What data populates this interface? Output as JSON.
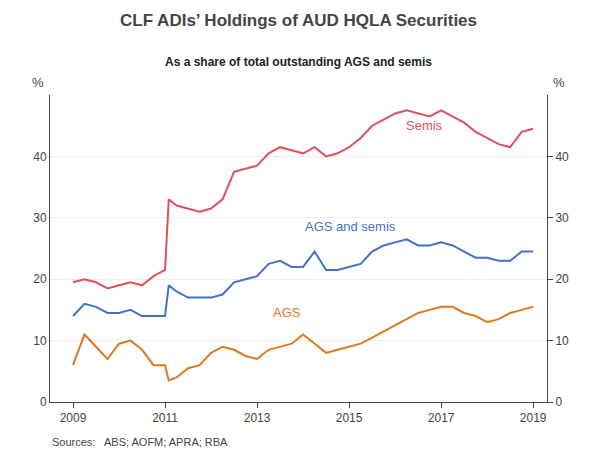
{
  "chart_data": {
    "type": "line",
    "title": "CLF ADIs’ Holdings of AUD HQLA Securities",
    "subtitle": "As a share of total outstanding AGS and semis",
    "ylabel": "%",
    "y2label": "%",
    "source": "Sources:   ABS; AOFM; APRA; RBA",
    "xlim": [
      2008.5,
      2019.3
    ],
    "xticks": [
      2009,
      2011,
      2013,
      2015,
      2017,
      2019
    ],
    "ylim": [
      0,
      50
    ],
    "yticks": [
      0,
      10,
      20,
      30,
      40
    ],
    "y2lim": [
      0,
      50
    ],
    "y2ticks": [
      0,
      10,
      20,
      30,
      40
    ],
    "grid": "y",
    "x": [
      2009.0,
      2009.25,
      2009.5,
      2009.75,
      2010.0,
      2010.25,
      2010.5,
      2010.75,
      2011.0,
      2011.08,
      2011.25,
      2011.5,
      2011.75,
      2012.0,
      2012.25,
      2012.5,
      2012.75,
      2013.0,
      2013.25,
      2013.5,
      2013.75,
      2014.0,
      2014.25,
      2014.5,
      2014.75,
      2015.0,
      2015.25,
      2015.5,
      2015.75,
      2016.0,
      2016.25,
      2016.5,
      2016.75,
      2017.0,
      2017.25,
      2017.5,
      2017.75,
      2018.0,
      2018.25,
      2018.5,
      2018.75,
      2019.0
    ],
    "series": [
      {
        "name": "Semis",
        "color": "#e05060",
        "values": [
          19.5,
          20.0,
          19.5,
          18.5,
          19.0,
          19.5,
          19.0,
          20.5,
          21.5,
          33.0,
          32.0,
          31.5,
          31.0,
          31.5,
          33.0,
          37.5,
          38.0,
          38.5,
          40.5,
          41.5,
          41.0,
          40.5,
          41.5,
          40.0,
          40.5,
          41.5,
          43.0,
          45.0,
          46.0,
          47.0,
          47.5,
          47.0,
          46.5,
          47.5,
          46.5,
          45.5,
          44.0,
          43.0,
          42.0,
          41.5,
          44.0,
          44.5
        ]
      },
      {
        "name": "AGS and semis",
        "color": "#4472c4",
        "values": [
          14.0,
          16.0,
          15.5,
          14.5,
          14.5,
          15.0,
          14.0,
          14.0,
          14.0,
          19.0,
          18.0,
          17.0,
          17.0,
          17.0,
          17.5,
          19.5,
          20.0,
          20.5,
          22.5,
          23.0,
          22.0,
          22.0,
          24.5,
          21.5,
          21.5,
          22.0,
          22.5,
          24.5,
          25.5,
          26.0,
          26.5,
          25.5,
          25.5,
          26.0,
          25.5,
          24.5,
          23.5,
          23.5,
          23.0,
          23.0,
          24.5,
          24.5
        ]
      },
      {
        "name": "AGS",
        "color": "#e07820",
        "values": [
          6.0,
          11.0,
          9.0,
          7.0,
          9.5,
          10.0,
          8.5,
          6.0,
          6.0,
          3.5,
          4.0,
          5.5,
          6.0,
          8.0,
          9.0,
          8.5,
          7.5,
          7.0,
          8.5,
          9.0,
          9.5,
          11.0,
          9.5,
          8.0,
          8.5,
          9.0,
          9.5,
          10.5,
          11.5,
          12.5,
          13.5,
          14.5,
          15.0,
          15.5,
          15.5,
          14.5,
          14.0,
          13.0,
          13.5,
          14.5,
          15.0,
          15.5
        ]
      }
    ],
    "annotations": [
      {
        "text": "Semis",
        "x": 2016.2,
        "y": 43.5,
        "color": "#e05060"
      },
      {
        "text": "AGS and semis",
        "x": 2014.0,
        "y": 27.0,
        "color": "#4472c4"
      },
      {
        "text": "AGS",
        "x": 2013.3,
        "y": 13.0,
        "color": "#e07820"
      }
    ]
  }
}
